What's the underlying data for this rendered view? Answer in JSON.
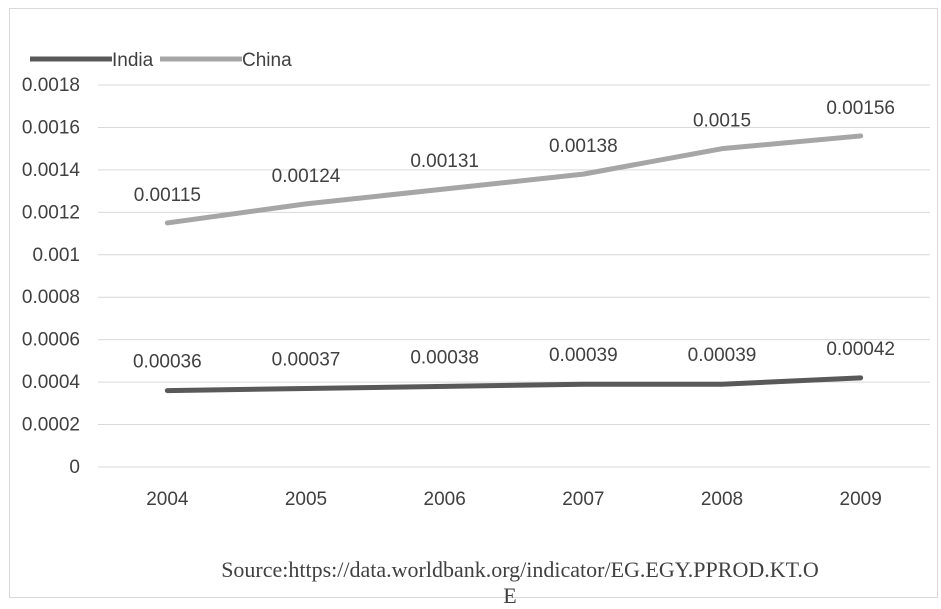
{
  "chart_data": {
    "type": "line",
    "title": "",
    "xlabel": "",
    "ylabel": "",
    "categories": [
      "2004",
      "2005",
      "2006",
      "2007",
      "2008",
      "2009"
    ],
    "ylim": [
      0,
      0.0018
    ],
    "yticks": [
      "0",
      "0.0002",
      "0.0004",
      "0.0006",
      "0.0008",
      "0.001",
      "0.0012",
      "0.0014",
      "0.0016",
      "0.0018"
    ],
    "grid": true,
    "legend_position": "top-left",
    "series": [
      {
        "name": "India",
        "color": "#595959",
        "values": [
          0.00036,
          0.00037,
          0.00038,
          0.00039,
          0.00039,
          0.00042
        ],
        "labels": [
          "0.00036",
          "0.00037",
          "0.00038",
          "0.00039",
          "0.00039",
          "0.00042"
        ]
      },
      {
        "name": "China",
        "color": "#a6a6a6",
        "values": [
          0.00115,
          0.00124,
          0.00131,
          0.00138,
          0.0015,
          0.00156
        ],
        "labels": [
          "0.00115",
          "0.00124",
          "0.00131",
          "0.00138",
          "0.0015",
          "0.00156"
        ]
      }
    ]
  },
  "source": {
    "line1": "Source:https://data.worldbank.org/indicator/EG.EGY.PPROD.KT.O",
    "line2": "E"
  }
}
